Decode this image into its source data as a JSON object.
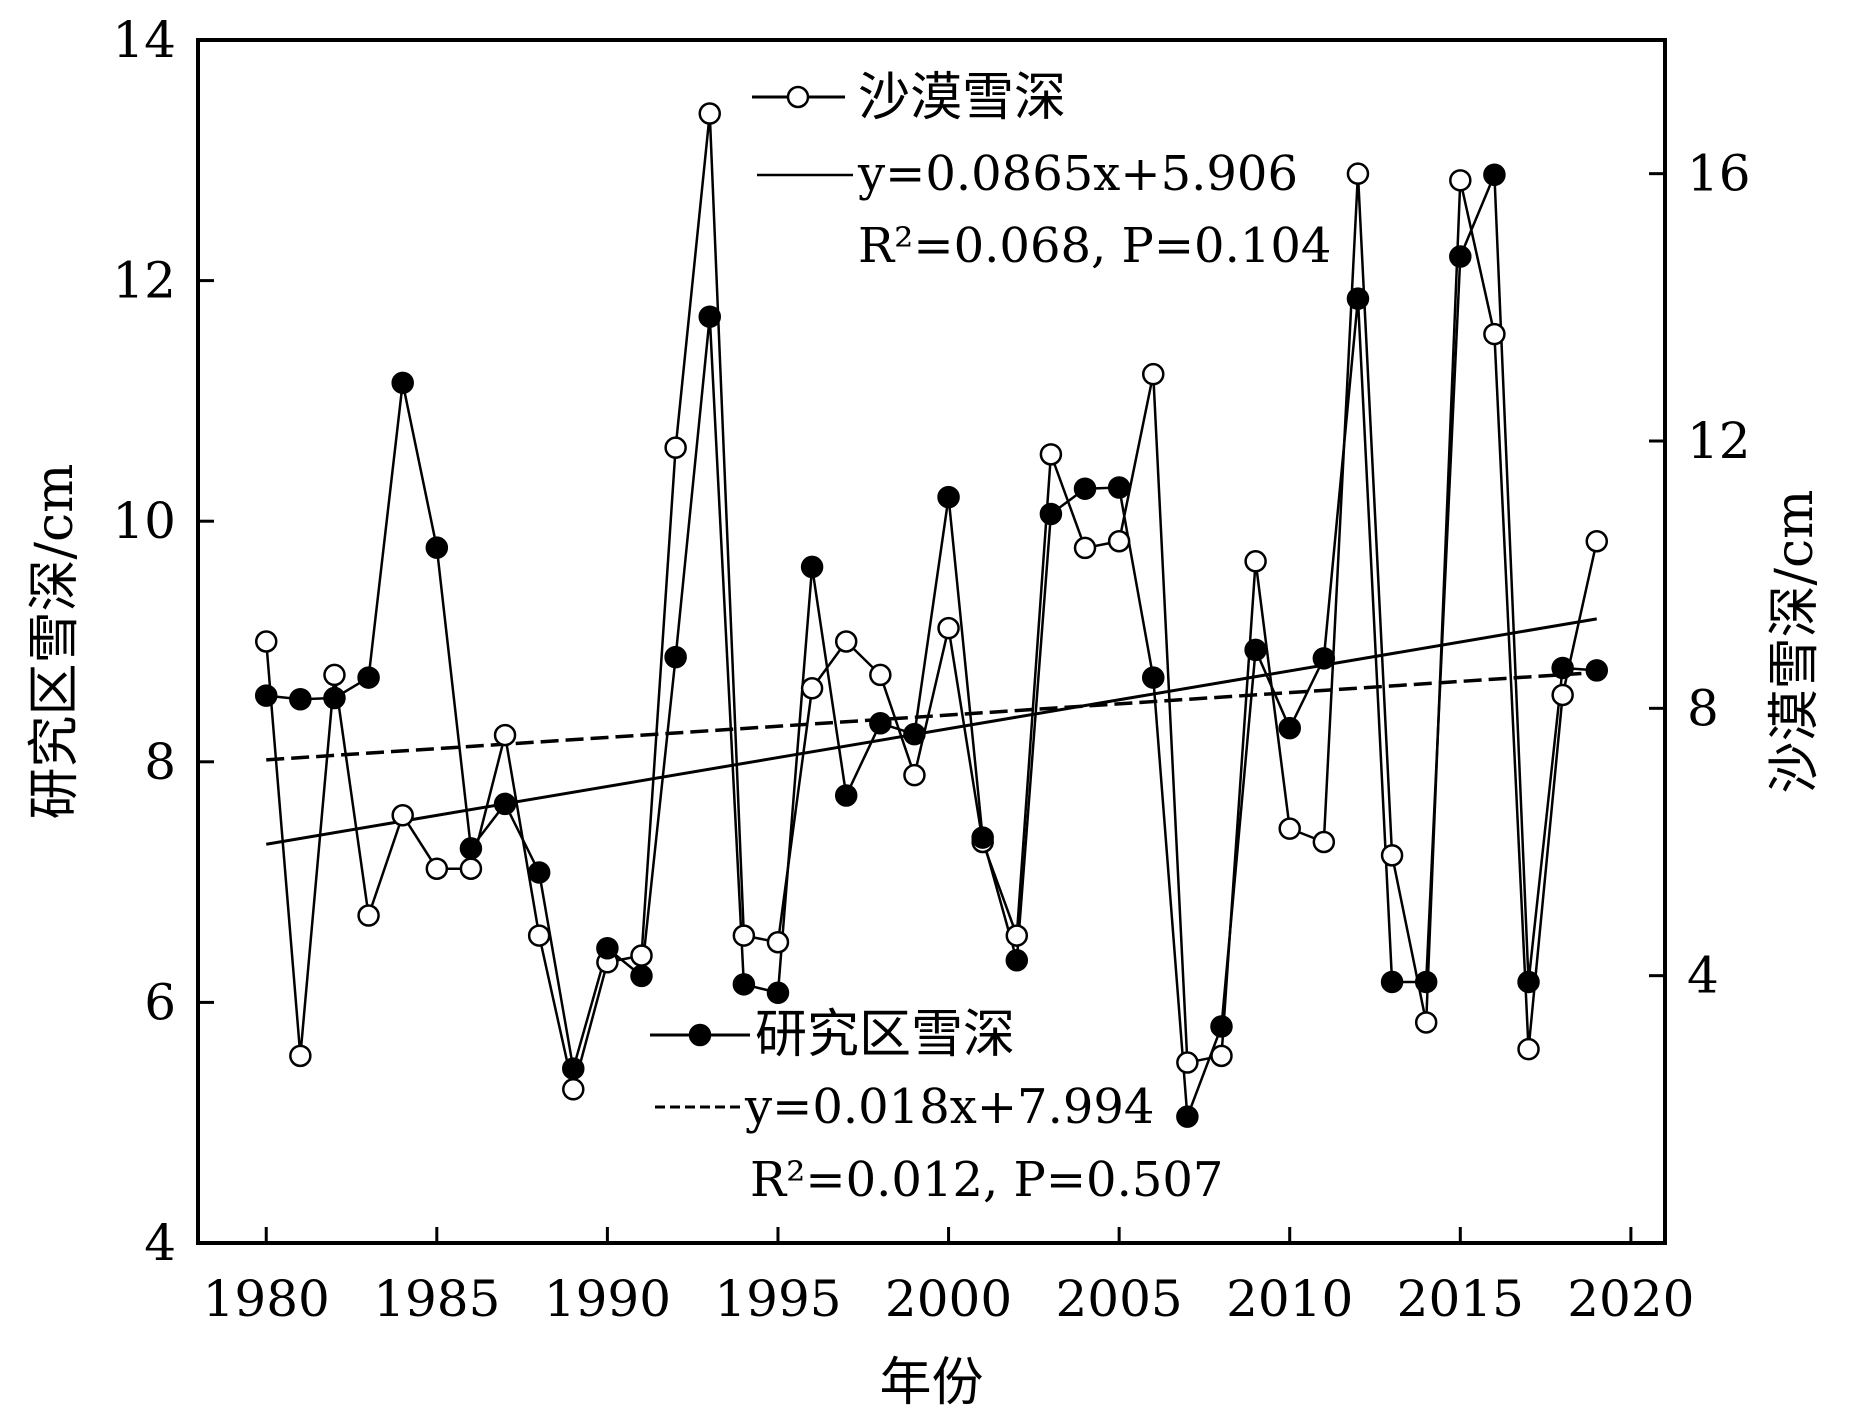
{
  "chart_data": {
    "type": "line",
    "xlabel": "年份",
    "ylabel_left": "研究区雪深/cm",
    "ylabel_right": "沙漠雪深/cm",
    "xlim": [
      1978,
      2021
    ],
    "ylim_left": [
      4,
      14
    ],
    "ylim_right": [
      0,
      18
    ],
    "x_ticks": [
      1980,
      1985,
      1990,
      1995,
      2000,
      2005,
      2010,
      2015,
      2020
    ],
    "y_left_ticks": [
      4,
      6,
      8,
      10,
      12,
      14
    ],
    "y_right_ticks": [
      4,
      8,
      12,
      16
    ],
    "x": [
      1980,
      1981,
      1982,
      1983,
      1984,
      1985,
      1986,
      1987,
      1988,
      1989,
      1990,
      1991,
      1992,
      1993,
      1994,
      1995,
      1996,
      1997,
      1998,
      1999,
      2000,
      2001,
      2002,
      2003,
      2004,
      2005,
      2006,
      2007,
      2008,
      2009,
      2010,
      2011,
      2012,
      2013,
      2014,
      2015,
      2016,
      2017,
      2018,
      2019
    ],
    "grid": false,
    "series": [
      {
        "name": "沙漠雪深",
        "axis": "right",
        "marker": "open-circle",
        "values": [
          9.0,
          2.8,
          8.5,
          4.9,
          6.4,
          5.6,
          5.6,
          7.6,
          4.6,
          2.3,
          4.2,
          4.3,
          11.9,
          16.9,
          4.6,
          4.5,
          8.3,
          9.0,
          8.5,
          7.0,
          9.2,
          6.0,
          4.6,
          11.8,
          10.4,
          10.5,
          13.0,
          2.7,
          2.8,
          10.2,
          6.2,
          6.0,
          16.0,
          5.8,
          3.3,
          15.9,
          13.6,
          2.9,
          8.2,
          10.5
        ],
        "trend": {
          "equation": "y=0.0865x+5.906",
          "stats": "R²=0.068, P=0.104",
          "style": "solid"
        }
      },
      {
        "name": "研究区雪深",
        "axis": "left",
        "marker": "filled-circle",
        "values": [
          8.55,
          8.52,
          8.53,
          8.7,
          11.15,
          9.78,
          7.28,
          7.65,
          7.08,
          5.45,
          6.45,
          6.22,
          8.87,
          11.7,
          6.15,
          6.08,
          9.62,
          7.72,
          8.32,
          8.23,
          10.2,
          7.37,
          6.35,
          10.06,
          10.27,
          10.28,
          8.7,
          5.05,
          5.8,
          8.93,
          8.28,
          8.86,
          11.85,
          6.17,
          6.17,
          12.2,
          12.88,
          6.17,
          8.78,
          8.76
        ],
        "trend": {
          "equation": "y=0.018x+7.994",
          "stats": "R²=0.012, P=0.507",
          "style": "dashed"
        }
      }
    ],
    "legend": {
      "position": "top-center and bottom-center"
    }
  }
}
